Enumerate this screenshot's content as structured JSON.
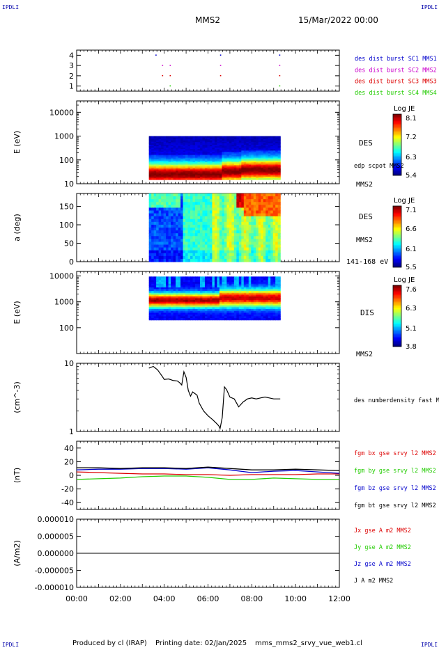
{
  "header": {
    "corner_label": "IPDLI",
    "spacecraft": "MMS2",
    "datetime": "15/Mar/2022 00:00"
  },
  "footer": {
    "produced": "Produced by cl (IRAP)",
    "printing": "Printing date: 02/Jan/2025",
    "file": "mms_mms2_srvy_vue_web1.cl"
  },
  "colors": {
    "blue": "#0000cc",
    "magenta": "#cc00cc",
    "red": "#dd0000",
    "green": "#22cc00",
    "black": "#000000"
  },
  "chart_data": [
    {
      "type": "scatter",
      "name": "burst-flags",
      "ylim": [
        0.5,
        4.5
      ],
      "yticks": [
        1,
        2,
        3,
        4
      ],
      "series": [
        {
          "name": "des dist burst SC1 MMS1",
          "color": "#0000cc",
          "y": 4,
          "x": [
            3.6,
            6.55,
            9.25
          ]
        },
        {
          "name": "des dist burst SC2 MMS2",
          "color": "#cc00cc",
          "y": 3,
          "x": [
            3.9,
            4.25,
            6.55,
            9.25
          ]
        },
        {
          "name": "des dist burst SC3 MMS3",
          "color": "#dd0000",
          "y": 2,
          "x": [
            3.9,
            4.25,
            6.55,
            9.25
          ]
        },
        {
          "name": "des dist burst SC4 MMS4",
          "color": "#22cc00",
          "y": 1,
          "x": [
            4.25,
            9.25
          ]
        }
      ]
    },
    {
      "type": "heatmap",
      "name": "des-energy-spectrogram",
      "ylabel": "E (eV)",
      "yscale": "log",
      "ylim": [
        10,
        30000
      ],
      "yticks": [
        10,
        100,
        1000,
        10000
      ],
      "data_x_range": [
        3.3,
        9.3
      ],
      "data_y_range": [
        15,
        1000
      ],
      "colorbar": {
        "title": "Log JE",
        "min": 5.4,
        "max": 8.1,
        "ticks": [
          "8.1",
          "7.2",
          "6.3",
          "5.4"
        ]
      },
      "right_labels": [
        "DES",
        "edp scpot MMS2"
      ],
      "corner_label": "MMS2"
    },
    {
      "type": "heatmap",
      "name": "des-pitch-angle",
      "ylabel": "a (deg)",
      "ylim": [
        0,
        185
      ],
      "yticks": [
        0,
        50,
        100,
        150
      ],
      "data_x_range": [
        3.3,
        9.3
      ],
      "colorbar": {
        "title": "Log JE",
        "min": 5.5,
        "max": 7.1,
        "ticks": [
          "7.1",
          "6.6",
          "6.1",
          "5.5"
        ]
      },
      "right_labels": [
        "DES",
        "MMS2"
      ],
      "corner_label": "141-168 eV"
    },
    {
      "type": "heatmap",
      "name": "dis-energy-spectrogram",
      "ylabel": "E (eV)",
      "yscale": "log",
      "ylim": [
        10,
        15000
      ],
      "yticks": [
        100,
        1000,
        10000
      ],
      "data_x_range": [
        3.3,
        9.3
      ],
      "data_y_range": [
        200,
        9500
      ],
      "colorbar": {
        "title": "Log JE",
        "min": 3.8,
        "max": 7.6,
        "ticks": [
          "7.6",
          "6.3",
          "5.1",
          "3.8"
        ]
      },
      "right_labels": [
        "DIS"
      ],
      "corner_label": "MMS2"
    },
    {
      "type": "line",
      "name": "density",
      "ylabel": "(cm^-3)",
      "yscale": "log",
      "ylim": [
        1,
        10
      ],
      "yticks": [
        1,
        10
      ],
      "series": [
        {
          "name": "des numberdensity fast M",
          "color": "#000000",
          "x": [
            3.3,
            3.5,
            3.7,
            3.9,
            4.0,
            4.2,
            4.4,
            4.6,
            4.7,
            4.8,
            4.9,
            5.0,
            5.1,
            5.2,
            5.3,
            5.5,
            5.6,
            5.8,
            6.0,
            6.2,
            6.4,
            6.5,
            6.55,
            6.65,
            6.75,
            6.85,
            7.0,
            7.2,
            7.4,
            7.6,
            7.8,
            8.0,
            8.2,
            8.4,
            8.6,
            8.8,
            9.0,
            9.3
          ],
          "y": [
            8.5,
            9.0,
            8.0,
            6.5,
            5.8,
            5.9,
            5.6,
            5.5,
            5.2,
            4.8,
            7.5,
            6.2,
            4.0,
            3.3,
            3.8,
            3.4,
            2.6,
            2.0,
            1.7,
            1.5,
            1.3,
            1.2,
            1.1,
            1.6,
            4.5,
            4.1,
            3.2,
            3.0,
            2.3,
            2.7,
            3.0,
            3.1,
            3.0,
            3.1,
            3.2,
            3.1,
            3.0,
            3.0
          ]
        }
      ]
    },
    {
      "type": "line",
      "name": "magnetic-field",
      "ylabel": "(nT)",
      "ylim": [
        -50,
        50
      ],
      "yticks": [
        -40,
        -20,
        0,
        20,
        40
      ],
      "series": [
        {
          "name": "fgm bx gse srvy l2 MMS2",
          "color": "#dd0000",
          "x": [
            0,
            1,
            2,
            3,
            4,
            5,
            6,
            7,
            8,
            9,
            10,
            11,
            12
          ],
          "y": [
            5,
            4,
            3,
            2,
            2,
            1,
            1,
            0,
            1,
            1,
            1,
            2,
            2
          ]
        },
        {
          "name": "fgm by gse srvy l2 MMS2",
          "color": "#22cc00",
          "x": [
            0,
            1,
            2,
            3,
            4,
            5,
            6,
            7,
            8,
            9,
            10,
            11,
            12
          ],
          "y": [
            -6,
            -5,
            -4,
            -2,
            -1,
            -1,
            -3,
            -6,
            -6,
            -4,
            -5,
            -6,
            -6
          ]
        },
        {
          "name": "fgm bz gse srvy l2 MMS2",
          "color": "#0000cc",
          "x": [
            0,
            1,
            2,
            3,
            4,
            5,
            6,
            7,
            8,
            9,
            10,
            11,
            12
          ],
          "y": [
            8,
            9,
            9,
            10,
            10,
            9,
            11,
            8,
            4,
            6,
            7,
            5,
            3
          ]
        },
        {
          "name": "fgm bt gse srvy l2 MMS2",
          "color": "#000000",
          "x": [
            0,
            1,
            2,
            3,
            4,
            5,
            6,
            7,
            8,
            9,
            10,
            11,
            12
          ],
          "y": [
            11,
            11,
            10,
            11,
            11,
            10,
            12,
            10,
            8,
            8,
            9,
            8,
            7
          ]
        }
      ]
    },
    {
      "type": "line",
      "name": "current-density",
      "ylabel": "(A/m2)",
      "ylim": [
        -1e-05,
        1e-05
      ],
      "ytick_labels": [
        "0.000010",
        "0.000005",
        "0.000000",
        "-0.000005",
        "-0.000010"
      ],
      "yticks": [
        1e-05,
        5e-06,
        0,
        -5e-06,
        -1e-05
      ],
      "xticks": [
        "00:00",
        "02:00",
        "04:00",
        "06:00",
        "08:00",
        "10:00",
        "12:00"
      ],
      "xlim": [
        0,
        12
      ],
      "series": [
        {
          "name": "Jx gse A m2 MMS2",
          "color": "#dd0000",
          "x": [
            0,
            12
          ],
          "y": [
            0,
            0
          ]
        },
        {
          "name": "Jy gse A m2 MMS2",
          "color": "#22cc00",
          "x": [
            0,
            12
          ],
          "y": [
            0,
            0
          ]
        },
        {
          "name": "Jz gse A m2 MMS2",
          "color": "#0000cc",
          "x": [
            0,
            12
          ],
          "y": [
            0,
            0
          ]
        },
        {
          "name": "J A m2 MMS2",
          "color": "#000000",
          "x": [
            0,
            12
          ],
          "y": [
            0,
            0
          ]
        }
      ]
    }
  ]
}
